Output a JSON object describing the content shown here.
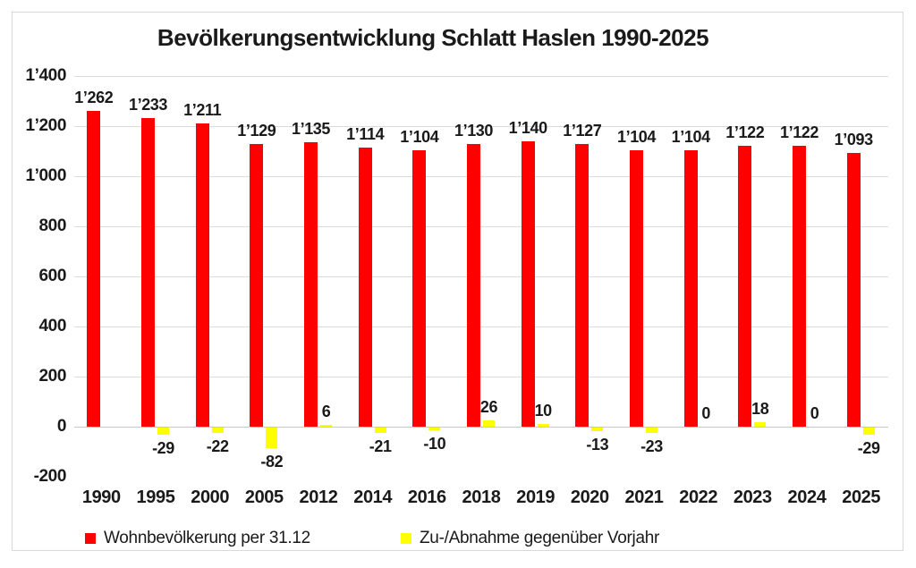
{
  "title": "Bevölkerungsentwicklung Schlatt Haslen 1990-2025",
  "colors": {
    "population_bar": "#ff0000",
    "delta_bar": "#ffff00",
    "gridline": "#dcdcdc",
    "zero_axis": "#c9c9c9",
    "text": "#1a1a1a",
    "frame_border": "#d9d9d9",
    "background": "#ffffff"
  },
  "legend": {
    "items": [
      {
        "label": "Wohnbevölkerung per 31.12",
        "color": "#ff0000"
      },
      {
        "label": "Zu-/Abnahme gegenüber Vorjahr",
        "color": "#ffff00"
      }
    ]
  },
  "chart_data": {
    "type": "bar",
    "title": "Bevölkerungsentwicklung Schlatt Haslen 1990-2025",
    "categories": [
      "1990",
      "1995",
      "2000",
      "2005",
      "2012",
      "2014",
      "2016",
      "2018",
      "2019",
      "2020",
      "2021",
      "2022",
      "2023",
      "2024",
      "2025"
    ],
    "series": [
      {
        "name": "Wohnbevölkerung per 31.12",
        "color": "#ff0000",
        "values": [
          1262,
          1233,
          1211,
          1129,
          1135,
          1114,
          1104,
          1130,
          1140,
          1127,
          1104,
          1104,
          1122,
          1122,
          1093
        ],
        "labels": [
          "1’262",
          "1’233",
          "1’211",
          "1’129",
          "1’135",
          "1’114",
          "1’104",
          "1’130",
          "1’140",
          "1’127",
          "1’104",
          "1’104",
          "1’122",
          "1’122",
          "1’093"
        ]
      },
      {
        "name": "Zu-/Abnahme gegenüber Vorjahr",
        "color": "#ffff00",
        "values": [
          null,
          -29,
          -22,
          -82,
          6,
          -21,
          -10,
          26,
          10,
          -13,
          -23,
          0,
          18,
          0,
          -29
        ],
        "labels": [
          "",
          "-29",
          "-22",
          "-82",
          "6",
          "-21",
          "-10",
          "26",
          "10",
          "-13",
          "-23",
          "0",
          "18",
          "0",
          "-29"
        ]
      }
    ],
    "ylim": [
      -200,
      1400
    ],
    "ytick_interval": 200,
    "ytick_labels": [
      "1’400",
      "1’200",
      "1’000",
      "800",
      "600",
      "400",
      "200",
      "0",
      "-200"
    ],
    "ytick_values": [
      1400,
      1200,
      1000,
      800,
      600,
      400,
      200,
      0,
      -200
    ],
    "grid": "horizontal",
    "legend_position": "bottom",
    "xlabel": "",
    "ylabel": ""
  }
}
